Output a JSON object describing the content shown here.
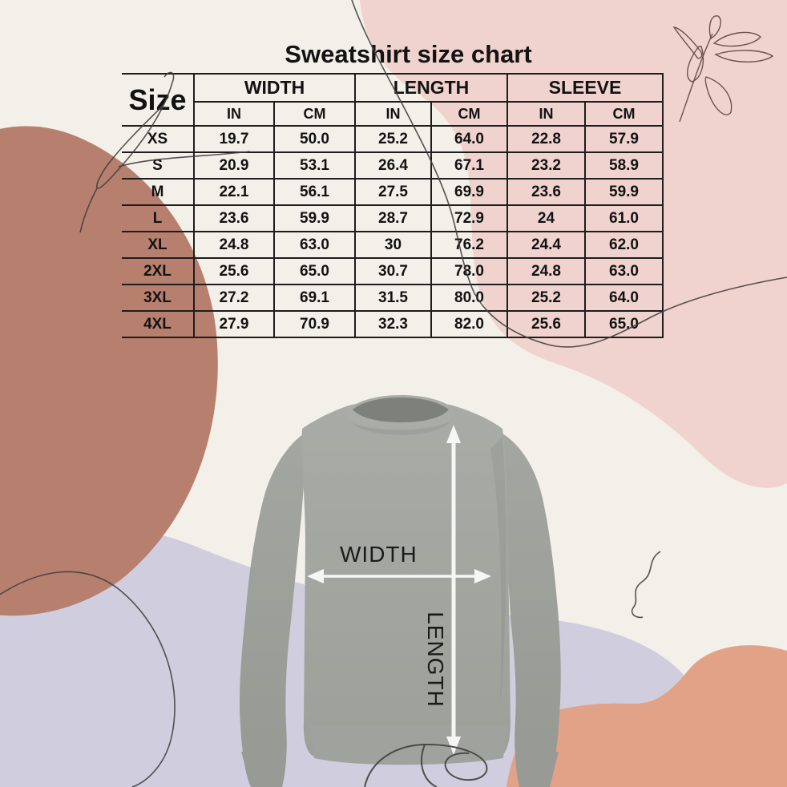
{
  "title": "Sweatshirt size chart",
  "table": {
    "corner_label": "Size",
    "group_headers": [
      "WIDTH",
      "LENGTH",
      "SLEEVE"
    ],
    "unit_headers": [
      "IN",
      "CM",
      "IN",
      "CM",
      "IN",
      "CM"
    ],
    "rows": [
      {
        "size": "XS",
        "values": [
          "19.7",
          "50.0",
          "25.2",
          "64.0",
          "22.8",
          "57.9"
        ]
      },
      {
        "size": "S",
        "values": [
          "20.9",
          "53.1",
          "26.4",
          "67.1",
          "23.2",
          "58.9"
        ]
      },
      {
        "size": "M",
        "values": [
          "22.1",
          "56.1",
          "27.5",
          "69.9",
          "23.6",
          "59.9"
        ]
      },
      {
        "size": "L",
        "values": [
          "23.6",
          "59.9",
          "28.7",
          "72.9",
          "24",
          "61.0"
        ]
      },
      {
        "size": "XL",
        "values": [
          "24.8",
          "63.0",
          "30",
          "76.2",
          "24.4",
          "62.0"
        ]
      },
      {
        "size": "2XL",
        "values": [
          "25.6",
          "65.0",
          "30.7",
          "78.0",
          "24.8",
          "63.0"
        ]
      },
      {
        "size": "3XL",
        "values": [
          "27.2",
          "69.1",
          "31.5",
          "80.0",
          "25.2",
          "64.0"
        ]
      },
      {
        "size": "4XL",
        "values": [
          "27.9",
          "70.9",
          "32.3",
          "82.0",
          "25.6",
          "65.0"
        ]
      }
    ]
  },
  "diagram": {
    "width_label": "WIDTH",
    "length_label": "LENGTH"
  },
  "colors": {
    "background": "#f2f0e8",
    "pink_blob": "#f0d3ce",
    "terracotta_blob": "#b77f6e",
    "lavender_blob": "#d0cdde",
    "salmon_blob": "#e2a287",
    "sweatshirt_gray": "#a5a8a2",
    "arrow_white": "#f6f6f4",
    "doodle_line": "#42403e",
    "table_ink": "#1d1d1d"
  },
  "chart_data": {
    "type": "table",
    "title": "Sweatshirt size chart",
    "columns": [
      "Size",
      "Width (in)",
      "Width (cm)",
      "Length (in)",
      "Length (cm)",
      "Sleeve (in)",
      "Sleeve (cm)"
    ],
    "rows": [
      [
        "XS",
        "19.7",
        "50.0",
        "25.2",
        "64.0",
        "22.8",
        "57.9"
      ],
      [
        "S",
        "20.9",
        "53.1",
        "26.4",
        "67.1",
        "23.2",
        "58.9"
      ],
      [
        "M",
        "22.1",
        "56.1",
        "27.5",
        "69.9",
        "23.6",
        "59.9"
      ],
      [
        "L",
        "23.6",
        "59.9",
        "28.7",
        "72.9",
        "24",
        "61.0"
      ],
      [
        "XL",
        "24.8",
        "63.0",
        "30",
        "76.2",
        "24.4",
        "62.0"
      ],
      [
        "2XL",
        "25.6",
        "65.0",
        "30.7",
        "78.0",
        "24.8",
        "63.0"
      ],
      [
        "3XL",
        "27.2",
        "69.1",
        "31.5",
        "80.0",
        "25.2",
        "64.0"
      ],
      [
        "4XL",
        "27.9",
        "70.9",
        "32.3",
        "82.0",
        "25.6",
        "65.0"
      ]
    ]
  }
}
